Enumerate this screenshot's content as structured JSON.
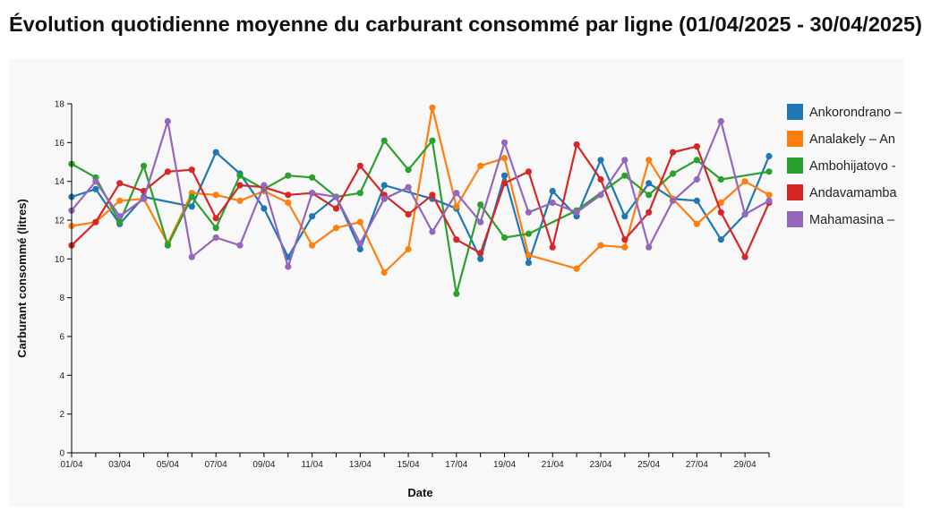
{
  "chart_data": {
    "type": "line",
    "title": "Évolution quotidienne moyenne du carburant consommé par ligne (01/04/2025 - 30/04/2025)",
    "xlabel": "Date",
    "ylabel": "Carburant consommé (litres)",
    "ylim": [
      0,
      18
    ],
    "y_ticks": [
      0,
      2,
      4,
      6,
      8,
      10,
      12,
      14,
      16,
      18
    ],
    "x_tick_labels": [
      "01/04",
      "03/04",
      "05/04",
      "07/04",
      "09/04",
      "11/04",
      "13/04",
      "15/04",
      "17/04",
      "19/04",
      "21/04",
      "23/04",
      "25/04",
      "27/04",
      "29/04"
    ],
    "x_tick_days": [
      1,
      3,
      5,
      7,
      9,
      11,
      13,
      15,
      17,
      19,
      21,
      23,
      25,
      27,
      29
    ],
    "x_range_days": [
      1,
      30
    ],
    "legend_position": "right",
    "series": [
      {
        "name": "Ankorondrano –",
        "color": "#1f77b4",
        "points": [
          [
            1,
            13.2
          ],
          [
            2,
            13.6
          ],
          [
            3,
            11.8
          ],
          [
            4,
            13.2
          ],
          [
            6,
            12.7
          ],
          [
            7,
            15.5
          ],
          [
            8,
            14.4
          ],
          [
            9,
            12.6
          ],
          [
            10,
            10.1
          ],
          [
            11,
            12.2
          ],
          [
            12,
            13.2
          ],
          [
            13,
            10.5
          ],
          [
            14,
            13.8
          ],
          [
            16,
            13.1
          ],
          [
            17,
            12.6
          ],
          [
            18,
            10.0
          ],
          [
            19,
            14.3
          ],
          [
            20,
            9.8
          ],
          [
            21,
            13.5
          ],
          [
            22,
            12.2
          ],
          [
            23,
            15.1
          ],
          [
            24,
            12.2
          ],
          [
            25,
            13.9
          ],
          [
            26,
            13.1
          ],
          [
            27,
            13.0
          ],
          [
            28,
            11.0
          ],
          [
            29,
            12.3
          ],
          [
            30,
            15.3
          ]
        ]
      },
      {
        "name": "Analakely – An",
        "color": "#ff7f0e",
        "points": [
          [
            1,
            11.7
          ],
          [
            2,
            11.9
          ],
          [
            3,
            13.0
          ],
          [
            4,
            13.1
          ],
          [
            5,
            10.8
          ],
          [
            6,
            13.4
          ],
          [
            7,
            13.3
          ],
          [
            8,
            13.0
          ],
          [
            9,
            13.5
          ],
          [
            10,
            12.9
          ],
          [
            11,
            10.7
          ],
          [
            12,
            11.6
          ],
          [
            13,
            11.9
          ],
          [
            14,
            9.3
          ],
          [
            15,
            10.5
          ],
          [
            16,
            17.8
          ],
          [
            17,
            12.7
          ],
          [
            18,
            14.8
          ],
          [
            19,
            15.2
          ],
          [
            20,
            10.2
          ],
          [
            22,
            9.5
          ],
          [
            23,
            10.7
          ],
          [
            24,
            10.6
          ],
          [
            25,
            15.1
          ],
          [
            26,
            13.1
          ],
          [
            27,
            11.8
          ],
          [
            28,
            12.9
          ],
          [
            29,
            14.0
          ],
          [
            30,
            13.3
          ]
        ]
      },
      {
        "name": "Ambohijatovo -",
        "color": "#2ca02c",
        "points": [
          [
            1,
            14.9
          ],
          [
            2,
            14.2
          ],
          [
            3,
            11.9
          ],
          [
            4,
            14.8
          ],
          [
            5,
            10.7
          ],
          [
            6,
            13.2
          ],
          [
            7,
            11.6
          ],
          [
            8,
            14.3
          ],
          [
            9,
            13.6
          ],
          [
            10,
            14.3
          ],
          [
            11,
            14.2
          ],
          [
            12,
            13.2
          ],
          [
            13,
            13.4
          ],
          [
            14,
            16.1
          ],
          [
            15,
            14.6
          ],
          [
            16,
            16.1
          ],
          [
            17,
            8.2
          ],
          [
            18,
            12.8
          ],
          [
            19,
            11.1
          ],
          [
            20,
            11.3
          ],
          [
            22,
            12.5
          ],
          [
            24,
            14.3
          ],
          [
            25,
            13.3
          ],
          [
            26,
            14.4
          ],
          [
            27,
            15.1
          ],
          [
            28,
            14.1
          ],
          [
            30,
            14.5
          ]
        ]
      },
      {
        "name": "Andavamamba",
        "color": "#d62728",
        "points": [
          [
            1,
            10.7
          ],
          [
            2,
            11.9
          ],
          [
            3,
            13.9
          ],
          [
            4,
            13.5
          ],
          [
            5,
            14.5
          ],
          [
            6,
            14.6
          ],
          [
            7,
            12.1
          ],
          [
            8,
            13.8
          ],
          [
            9,
            13.7
          ],
          [
            10,
            13.3
          ],
          [
            11,
            13.4
          ],
          [
            12,
            12.6
          ],
          [
            13,
            14.8
          ],
          [
            14,
            13.3
          ],
          [
            15,
            12.3
          ],
          [
            16,
            13.3
          ],
          [
            17,
            11.0
          ],
          [
            18,
            10.3
          ],
          [
            19,
            13.9
          ],
          [
            20,
            14.5
          ],
          [
            21,
            10.6
          ],
          [
            22,
            15.9
          ],
          [
            23,
            14.1
          ],
          [
            24,
            11.0
          ],
          [
            25,
            12.4
          ],
          [
            26,
            15.5
          ],
          [
            27,
            15.8
          ],
          [
            28,
            12.4
          ],
          [
            29,
            10.1
          ],
          [
            30,
            12.9
          ]
        ]
      },
      {
        "name": "Mahamasina –",
        "color": "#9467bd",
        "points": [
          [
            1,
            12.5
          ],
          [
            2,
            14.0
          ],
          [
            3,
            12.2
          ],
          [
            4,
            13.1
          ],
          [
            5,
            17.1
          ],
          [
            6,
            10.1
          ],
          [
            7,
            11.1
          ],
          [
            8,
            10.7
          ],
          [
            9,
            13.8
          ],
          [
            10,
            9.6
          ],
          [
            11,
            13.4
          ],
          [
            12,
            13.2
          ],
          [
            13,
            10.8
          ],
          [
            14,
            13.1
          ],
          [
            15,
            13.7
          ],
          [
            16,
            11.4
          ],
          [
            17,
            13.4
          ],
          [
            18,
            11.9
          ],
          [
            19,
            16.0
          ],
          [
            20,
            12.4
          ],
          [
            21,
            12.9
          ],
          [
            22,
            12.4
          ],
          [
            23,
            13.3
          ],
          [
            24,
            15.1
          ],
          [
            25,
            10.6
          ],
          [
            26,
            13.0
          ],
          [
            27,
            14.1
          ],
          [
            28,
            17.1
          ],
          [
            29,
            12.3
          ],
          [
            30,
            13.0
          ]
        ]
      }
    ]
  }
}
